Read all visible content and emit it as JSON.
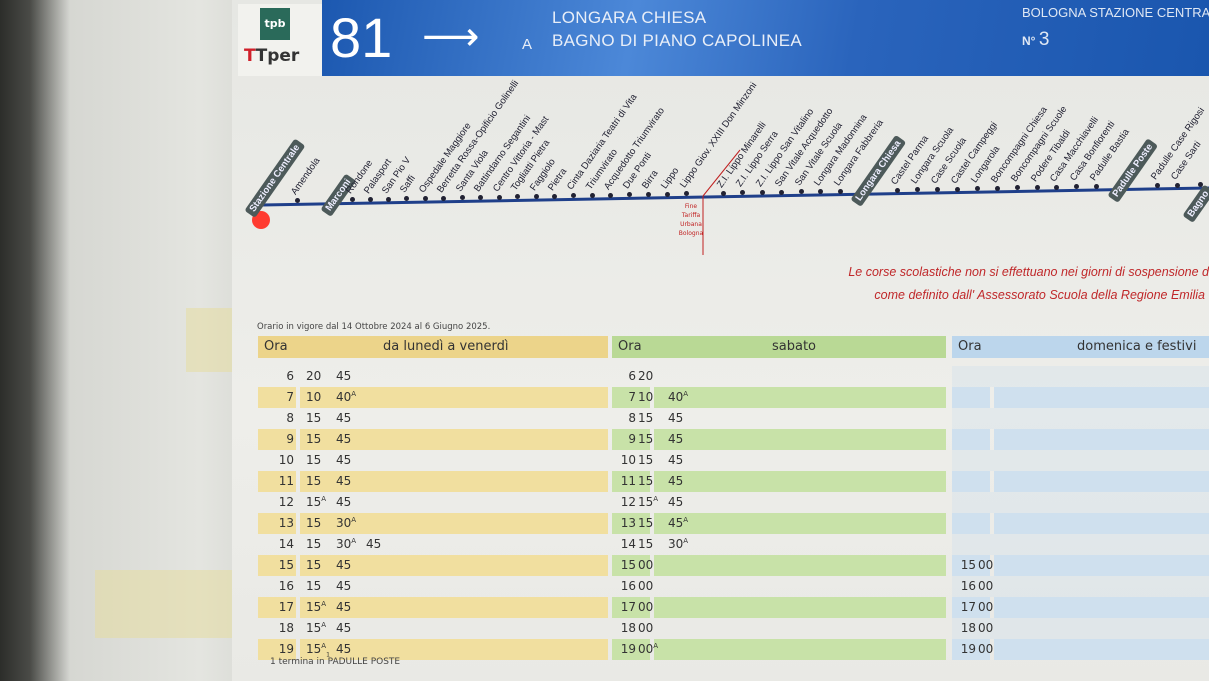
{
  "header": {
    "operator_logo_top": "tpb",
    "operator_logo_bottom": "Tper",
    "line_number": "81",
    "arrow": "⟶",
    "to_prefix": "A",
    "destinations": [
      "LONGARA CHIESA",
      "BAGNO DI PIANO CAPOLINEA"
    ],
    "stop_name": "BOLOGNA STAZIONE CENTRALE",
    "stop_number_prefix": "N°",
    "stop_number": "3",
    "brand_color": "#2a64bc"
  },
  "route": {
    "stops": [
      {
        "name": "Stazione Centrale",
        "major": true
      },
      {
        "name": "Amendola"
      },
      {
        "name": "Marconi",
        "major": true
      },
      {
        "name": "Rondone"
      },
      {
        "name": "Palasport"
      },
      {
        "name": "San Pio V"
      },
      {
        "name": "Saffi"
      },
      {
        "name": "Ospedale Maggiore"
      },
      {
        "name": "Berretta Rossa-Opificio Golinelli"
      },
      {
        "name": "Santa Viola"
      },
      {
        "name": "Battindarno Segantini"
      },
      {
        "name": "Centro Vittoria - Mast"
      },
      {
        "name": "Togliatti Pietra"
      },
      {
        "name": "Faggiolo"
      },
      {
        "name": "Pietra"
      },
      {
        "name": "Cinta Daziaria Teatri di Vita"
      },
      {
        "name": "Triumvirato"
      },
      {
        "name": "Acquedotto Triumvirato"
      },
      {
        "name": "Due Ponti"
      },
      {
        "name": "Birra"
      },
      {
        "name": "Lippo"
      },
      {
        "name": "Lippo Giov. XXIII Don Minzoni"
      },
      {
        "name": "Z.I. Lippo Minarelli"
      },
      {
        "name": "Z.I. Lippo Serra"
      },
      {
        "name": "Z.I. Lippo San Vitalino"
      },
      {
        "name": "San Vitale Acquedotto"
      },
      {
        "name": "San Vitale Scuola"
      },
      {
        "name": "Longara Madonnina"
      },
      {
        "name": "Longara Fabbreria"
      },
      {
        "name": "Longara Chiesa",
        "major": true
      },
      {
        "name": "Castel Parma"
      },
      {
        "name": "Longara Scuola"
      },
      {
        "name": "Case Scuola"
      },
      {
        "name": "Castel Campeggi"
      },
      {
        "name": "Longarola"
      },
      {
        "name": "Boncompagni Chiesa"
      },
      {
        "name": "Boncompagni Scuole"
      },
      {
        "name": "Podere Tibaldi"
      },
      {
        "name": "Casa Macchiavelli"
      },
      {
        "name": "Casa Bonfiorenti"
      },
      {
        "name": "Padulle Bastia"
      },
      {
        "name": "Padulle Poste",
        "major": true
      },
      {
        "name": "Padulle Case Rigosi"
      },
      {
        "name": "Case Sarti"
      },
      {
        "name": "Bagno",
        "major": true
      }
    ],
    "fare_limit": [
      "Fine",
      "Tariffa",
      "Urbana",
      "Bologna"
    ],
    "line_color": "#1f3f8a",
    "origin_marker_color": "#ff3b30"
  },
  "notice": [
    "Le corse scolastiche non si effettuano nei giorni di sospensione d",
    "come definito dall' Assessorato Scuola della Regione Emilia"
  ],
  "validity": "Orario in vigore dal 14 Ottobre 2024 al 6 Giugno 2025.",
  "timetable": [
    {
      "hour_label": "Ora",
      "day": "da lunedì a venerdì",
      "header_color": "#ecd48a",
      "stripe_color": "#f1df9f",
      "rows": [
        {
          "h": "6",
          "m": [
            {
              "v": "20"
            },
            {
              "v": "45"
            }
          ]
        },
        {
          "h": "7",
          "m": [
            {
              "v": "10"
            },
            {
              "v": "40",
              "sup": "A"
            }
          ]
        },
        {
          "h": "8",
          "m": [
            {
              "v": "15"
            },
            {
              "v": "45"
            }
          ]
        },
        {
          "h": "9",
          "m": [
            {
              "v": "15"
            },
            {
              "v": "45"
            }
          ]
        },
        {
          "h": "10",
          "m": [
            {
              "v": "15"
            },
            {
              "v": "45"
            }
          ]
        },
        {
          "h": "11",
          "m": [
            {
              "v": "15"
            },
            {
              "v": "45"
            }
          ]
        },
        {
          "h": "12",
          "m": [
            {
              "v": "15",
              "sup": "A"
            },
            {
              "v": "45"
            }
          ]
        },
        {
          "h": "13",
          "m": [
            {
              "v": "15"
            },
            {
              "v": "30",
              "sup": "A"
            }
          ]
        },
        {
          "h": "14",
          "m": [
            {
              "v": "15"
            },
            {
              "v": "30",
              "sup": "A"
            },
            {
              "v": "45"
            }
          ]
        },
        {
          "h": "15",
          "m": [
            {
              "v": "15"
            },
            {
              "v": "45"
            }
          ]
        },
        {
          "h": "16",
          "m": [
            {
              "v": "15"
            },
            {
              "v": "45"
            }
          ]
        },
        {
          "h": "17",
          "m": [
            {
              "v": "15",
              "sup": "A"
            },
            {
              "v": "45"
            }
          ]
        },
        {
          "h": "18",
          "m": [
            {
              "v": "15",
              "sup": "A"
            },
            {
              "v": "45"
            }
          ]
        },
        {
          "h": "19",
          "m": [
            {
              "v": "15",
              "sup": "A",
              "sub": "1"
            },
            {
              "v": "45"
            }
          ]
        }
      ]
    },
    {
      "hour_label": "Ora",
      "day": "sabato",
      "header_color": "#b9d995",
      "stripe_color": "#c8e2a8",
      "rows": [
        {
          "h": "6",
          "m": [
            {
              "v": "20"
            }
          ]
        },
        {
          "h": "7",
          "m": [
            {
              "v": "10"
            },
            {
              "v": "40",
              "sup": "A"
            }
          ]
        },
        {
          "h": "8",
          "m": [
            {
              "v": "15"
            },
            {
              "v": "45"
            }
          ]
        },
        {
          "h": "9",
          "m": [
            {
              "v": "15"
            },
            {
              "v": "45"
            }
          ]
        },
        {
          "h": "10",
          "m": [
            {
              "v": "15"
            },
            {
              "v": "45"
            }
          ]
        },
        {
          "h": "11",
          "m": [
            {
              "v": "15"
            },
            {
              "v": "45"
            }
          ]
        },
        {
          "h": "12",
          "m": [
            {
              "v": "15",
              "sup": "A"
            },
            {
              "v": "45"
            }
          ]
        },
        {
          "h": "13",
          "m": [
            {
              "v": "15"
            },
            {
              "v": "45",
              "sup": "A"
            }
          ]
        },
        {
          "h": "14",
          "m": [
            {
              "v": "15"
            },
            {
              "v": "30",
              "sup": "A"
            }
          ]
        },
        {
          "h": "15",
          "m": [
            {
              "v": "00"
            }
          ]
        },
        {
          "h": "16",
          "m": [
            {
              "v": "00"
            }
          ]
        },
        {
          "h": "17",
          "m": [
            {
              "v": "00"
            }
          ]
        },
        {
          "h": "18",
          "m": [
            {
              "v": "00"
            }
          ]
        },
        {
          "h": "19",
          "m": [
            {
              "v": "00",
              "sup": "A"
            }
          ]
        }
      ]
    },
    {
      "hour_label": "Ora",
      "day": "domenica e festivi",
      "header_color": "#bcd6ec",
      "stripe_color": "#cfe0ee",
      "rows": [
        {
          "h": "",
          "m": []
        },
        {
          "h": "",
          "m": []
        },
        {
          "h": "",
          "m": []
        },
        {
          "h": "",
          "m": []
        },
        {
          "h": "",
          "m": []
        },
        {
          "h": "",
          "m": []
        },
        {
          "h": "",
          "m": []
        },
        {
          "h": "",
          "m": []
        },
        {
          "h": "",
          "m": []
        },
        {
          "h": "15",
          "m": [
            {
              "v": "00"
            }
          ]
        },
        {
          "h": "16",
          "m": [
            {
              "v": "00"
            }
          ]
        },
        {
          "h": "17",
          "m": [
            {
              "v": "00"
            }
          ]
        },
        {
          "h": "18",
          "m": [
            {
              "v": "00"
            }
          ]
        },
        {
          "h": "19",
          "m": [
            {
              "v": "00"
            }
          ]
        }
      ]
    }
  ],
  "footnote": "1  termina in PADULLE POSTE"
}
